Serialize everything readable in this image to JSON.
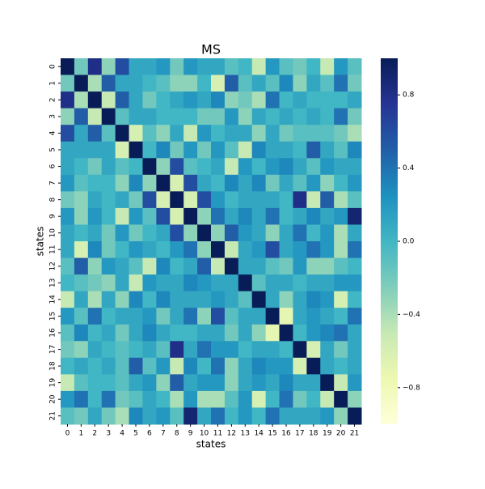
{
  "chart_data": {
    "type": "heatmap",
    "title": "MS",
    "x_label": "states",
    "y_label": "states",
    "x": [
      "0",
      "1",
      "2",
      "3",
      "4",
      "5",
      "6",
      "7",
      "8",
      "9",
      "10",
      "11",
      "12",
      "13",
      "14",
      "15",
      "16",
      "17",
      "18",
      "19",
      "20",
      "21"
    ],
    "y": [
      "0",
      "1",
      "2",
      "3",
      "4",
      "5",
      "6",
      "7",
      "8",
      "9",
      "10",
      "11",
      "12",
      "13",
      "14",
      "15",
      "16",
      "17",
      "18",
      "19",
      "20",
      "21"
    ],
    "z": [
      [
        1,
        -0.2,
        0.8,
        -0.3,
        0.6,
        0.1,
        0.1,
        0.2,
        -0.2,
        0.2,
        0.1,
        0.1,
        -0.1,
        0,
        -0.5,
        0.2,
        -0.1,
        -0.2,
        0,
        -0.5,
        0.2,
        -0.1
      ],
      [
        -0.2,
        1,
        -0.4,
        0.5,
        0.1,
        0.1,
        0,
        -0.1,
        -0.3,
        -0.3,
        0,
        -0.6,
        0.5,
        -0.1,
        0.1,
        -0.1,
        0.3,
        -0.3,
        0.1,
        -0.1,
        0.4,
        -0.2
      ],
      [
        0.8,
        -0.4,
        1,
        -0.5,
        0.5,
        0.1,
        -0.2,
        0,
        0.1,
        0.2,
        0.1,
        0.3,
        -0.3,
        -0.2,
        -0.4,
        0.4,
        0,
        0.1,
        0,
        0,
        0,
        0.1
      ],
      [
        -0.3,
        0.5,
        -0.5,
        1,
        -0.1,
        0.1,
        0.1,
        0,
        0,
        0,
        -0.2,
        -0.2,
        0.2,
        -0.3,
        0.1,
        0,
        0.1,
        0,
        0.1,
        0,
        0.4,
        -0.2
      ],
      [
        0.6,
        0.1,
        0.5,
        -0.1,
        1,
        -0.6,
        -0.1,
        -0.3,
        0.1,
        -0.5,
        0.2,
        0,
        0.1,
        0.1,
        -0.3,
        0.1,
        -0.2,
        -0.1,
        -0.1,
        -0.1,
        -0.2,
        -0.4
      ],
      [
        0.1,
        0.1,
        0.1,
        0.1,
        -0.6,
        1,
        0,
        0.3,
        -0.2,
        0.2,
        -0.2,
        0.2,
        -0.1,
        -0.5,
        0.3,
        0.1,
        0.1,
        0,
        0.5,
        0.1,
        -0.1,
        0.3
      ],
      [
        0.1,
        0,
        -0.2,
        0.1,
        -0.1,
        0,
        1,
        -0.3,
        0.6,
        -0.1,
        0,
        0.1,
        -0.5,
        0.2,
        0,
        0.2,
        0.3,
        0.1,
        -0.1,
        0.2,
        0.1,
        0.1
      ],
      [
        0.2,
        -0.1,
        0,
        0,
        -0.3,
        0.3,
        -0.3,
        1,
        -0.6,
        0.6,
        0.1,
        0,
        0.3,
        0.1,
        0.3,
        -0.2,
        0.1,
        -0.1,
        0.2,
        -0.3,
        0,
        0.2
      ],
      [
        -0.2,
        -0.3,
        0.1,
        0,
        0.1,
        -0.2,
        0.6,
        -0.6,
        1,
        -0.6,
        0.6,
        0.2,
        0,
        0.1,
        0.1,
        0.1,
        0,
        0.8,
        -0.5,
        0.5,
        -0.4,
        -0.1
      ],
      [
        0.2,
        -0.3,
        0.2,
        0,
        -0.5,
        0.2,
        -0.1,
        0.6,
        -0.6,
        1,
        -0.3,
        0.4,
        0.1,
        0.3,
        0.1,
        0.4,
        0,
        0.1,
        0.3,
        0.1,
        0.2,
        0.9
      ],
      [
        0.1,
        0,
        0.1,
        -0.2,
        0.2,
        -0.2,
        0,
        0.1,
        0.6,
        -0.3,
        1,
        -0.3,
        0.5,
        0.2,
        0.1,
        -0.3,
        0.1,
        0.4,
        0,
        0.2,
        -0.4,
        0.1
      ],
      [
        0.1,
        -0.6,
        0.3,
        -0.2,
        0,
        0.2,
        0.1,
        0,
        0.2,
        0.4,
        -0.3,
        1,
        -0.5,
        0.1,
        0.2,
        0.6,
        0.1,
        0.2,
        0.4,
        0.2,
        -0.4,
        0.4
      ],
      [
        -0.1,
        0.5,
        -0.3,
        0.2,
        0.1,
        -0.1,
        -0.5,
        0.3,
        0,
        0.1,
        0.5,
        -0.5,
        1,
        0.1,
        0.1,
        -0.1,
        -0.2,
        0.2,
        -0.3,
        -0.3,
        -0.1,
        0
      ],
      [
        0,
        -0.1,
        -0.2,
        -0.3,
        0.1,
        -0.5,
        0.2,
        0.1,
        0.1,
        0.3,
        0.2,
        0.1,
        0.1,
        1,
        -0.1,
        0.1,
        0.1,
        0,
        0.1,
        0.1,
        0.2,
        0.2
      ],
      [
        -0.5,
        0.1,
        -0.4,
        0.1,
        -0.3,
        0.3,
        0,
        0.3,
        0.1,
        0.1,
        0.1,
        0.2,
        0.1,
        -0.1,
        1,
        0.1,
        -0.3,
        0.1,
        0.3,
        0.2,
        -0.6,
        0
      ],
      [
        0.2,
        -0.1,
        0.4,
        0,
        0.1,
        0.1,
        0.2,
        -0.2,
        0.1,
        0.4,
        -0.3,
        0.6,
        -0.1,
        0.1,
        0.1,
        1,
        -0.7,
        0.1,
        0.2,
        0.1,
        0,
        0.4
      ],
      [
        -0.1,
        0.3,
        0,
        0.1,
        -0.2,
        0.1,
        0.3,
        0.1,
        0,
        0,
        0.1,
        0.1,
        -0.2,
        0.1,
        -0.3,
        -0.7,
        1,
        0,
        0.2,
        0.3,
        0.4,
        0.1
      ],
      [
        -0.2,
        -0.3,
        0.1,
        0,
        -0.1,
        0,
        0.1,
        -0.1,
        0.8,
        0.1,
        0.4,
        0.2,
        0.2,
        0,
        0.1,
        0.1,
        0,
        1,
        -0.6,
        0.1,
        -0.2,
        0.1
      ],
      [
        0,
        0.1,
        0,
        0.1,
        -0.1,
        0.5,
        -0.1,
        0.2,
        -0.5,
        0.3,
        0,
        0.4,
        -0.3,
        0.1,
        0.3,
        0.2,
        0.2,
        -0.6,
        1,
        0.1,
        0,
        0.1
      ],
      [
        -0.5,
        -0.1,
        0,
        0,
        -0.1,
        0.1,
        0.2,
        -0.3,
        0.5,
        0.1,
        0.2,
        0.2,
        -0.3,
        0.1,
        0.2,
        0.1,
        0.3,
        0.1,
        0.1,
        1,
        -0.5,
        0.2
      ],
      [
        0.2,
        0.4,
        0,
        0.4,
        -0.2,
        -0.1,
        0.1,
        0,
        -0.4,
        0.2,
        -0.4,
        -0.4,
        -0.1,
        0.2,
        -0.6,
        0,
        0.4,
        -0.2,
        0,
        -0.5,
        1,
        -0.3
      ],
      [
        -0.1,
        -0.2,
        0.1,
        -0.2,
        -0.4,
        0.3,
        0.1,
        0.2,
        -0.1,
        0.9,
        0.1,
        0.4,
        0,
        0.2,
        0,
        0.4,
        0.1,
        0.1,
        0.1,
        0.2,
        -0.3,
        1
      ]
    ],
    "zlim": [
      -1,
      1
    ],
    "colorscale": [
      "#ffffd9",
      "#edf8b1",
      "#c7e9b4",
      "#7fcdbb",
      "#41b6c4",
      "#1d91c0",
      "#225ea8",
      "#253494",
      "#081d58"
    ],
    "zticks": [
      {
        "value": -0.8,
        "label": "−0.8"
      },
      {
        "value": -0.4,
        "label": "−0.4"
      },
      {
        "value": 0,
        "label": "0.0"
      },
      0.4,
      0.8
    ]
  }
}
